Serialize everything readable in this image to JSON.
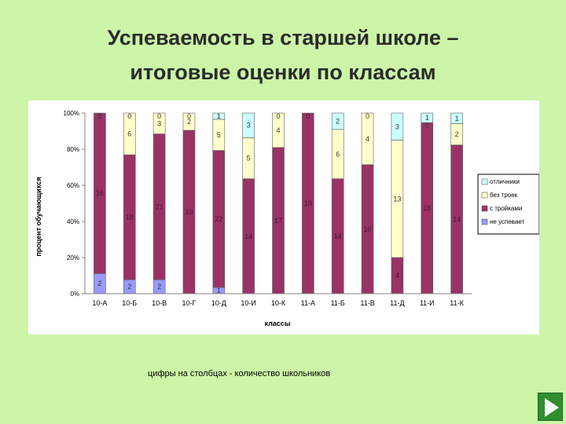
{
  "slide": {
    "title_line1": "Успеваемость в старшей школе –",
    "title_line2": "итоговые оценки по классам",
    "caption": "цифры на столбцах - количество школьников"
  },
  "chart_data": {
    "type": "bar",
    "stacked": true,
    "percent": true,
    "title": "",
    "xlabel": "классы",
    "ylabel": "процент обучающихся",
    "ylim": [
      0,
      100
    ],
    "yticks": [
      "0%",
      "20%",
      "40%",
      "60%",
      "80%",
      "100%"
    ],
    "grid": false,
    "legend_position": "right",
    "categories": [
      "10-А",
      "10-Б",
      "10-В",
      "10-Г",
      "10-Д",
      "10-И",
      "10-К",
      "11-А",
      "11-Б",
      "11-В",
      "11-Д",
      "11-И",
      "11-К"
    ],
    "series": [
      {
        "name": "не успевает",
        "color": "#9999ff",
        "values": [
          2,
          2,
          2,
          0,
          1,
          0,
          0,
          0,
          0,
          0,
          0,
          0,
          0
        ]
      },
      {
        "name": "с тройками",
        "color": "#993366",
        "values": [
          16,
          18,
          21,
          19,
          22,
          14,
          17,
          19,
          14,
          10,
          4,
          18,
          14
        ]
      },
      {
        "name": "без троек",
        "color": "#ffffcc",
        "values": [
          0,
          6,
          3,
          2,
          5,
          5,
          4,
          0,
          6,
          4,
          13,
          0,
          2
        ]
      },
      {
        "name": "отличники",
        "color": "#ccffff",
        "values": [
          0,
          0,
          0,
          0,
          1,
          3,
          0,
          0,
          2,
          0,
          3,
          1,
          1
        ]
      }
    ],
    "legend_order": [
      "отличники",
      "без троек",
      "с тройками",
      "не успевает"
    ]
  }
}
